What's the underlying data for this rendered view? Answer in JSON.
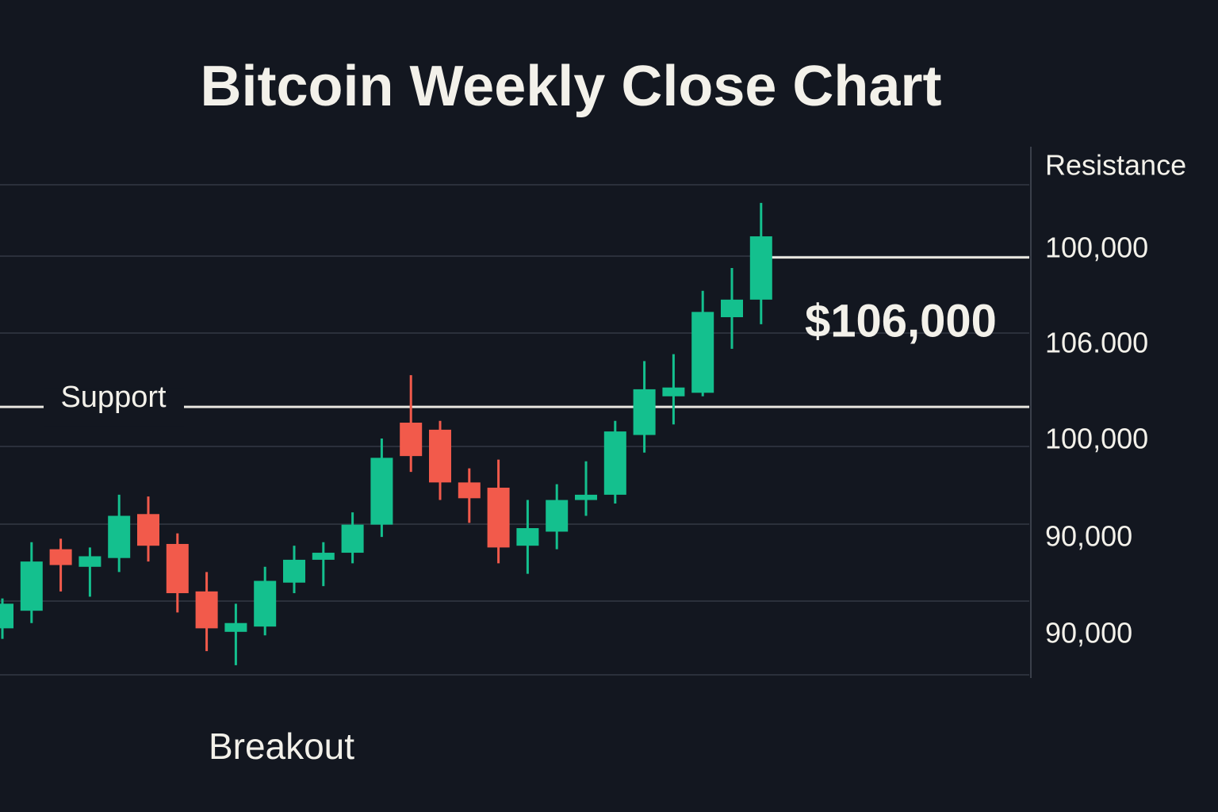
{
  "chart_data": {
    "type": "candlestick",
    "title": "Bitcoin Weekly Close Chart",
    "categories": [
      null,
      null,
      null,
      null,
      null,
      null,
      null,
      null,
      null,
      null,
      null,
      null,
      null,
      null,
      null,
      null,
      null,
      null,
      null,
      null,
      null,
      null,
      null,
      null,
      null,
      null,
      null
    ],
    "open": [
      82600,
      83600,
      87100,
      86100,
      86600,
      89100,
      87400,
      84700,
      82400,
      82700,
      85200,
      86500,
      86900,
      88500,
      94300,
      93900,
      90900,
      90600,
      87300,
      88100,
      89900,
      90200,
      93600,
      95800,
      96000,
      100300,
      101300
    ],
    "high": [
      84300,
      87500,
      87700,
      87200,
      90200,
      90100,
      88000,
      85800,
      84000,
      86100,
      87300,
      87500,
      89200,
      93400,
      97000,
      94400,
      91700,
      92200,
      89900,
      90800,
      92100,
      94400,
      97800,
      98200,
      101800,
      103100,
      106800
    ],
    "low": [
      82000,
      82900,
      84700,
      84400,
      85800,
      86400,
      83500,
      81300,
      80500,
      82200,
      84600,
      85000,
      86300,
      87800,
      91500,
      89900,
      88600,
      86300,
      85700,
      87100,
      89000,
      89700,
      92600,
      94200,
      95800,
      98500,
      99900
    ],
    "close": [
      84000,
      86400,
      86200,
      86700,
      89000,
      87300,
      84600,
      82600,
      82900,
      85300,
      86500,
      86900,
      88500,
      92300,
      92400,
      90900,
      90000,
      87200,
      88300,
      89900,
      90200,
      93800,
      96200,
      96300,
      100600,
      101300,
      104900
    ],
    "up_color": "#14c08e",
    "down_color": "#f25a4b",
    "ylim": [
      80000,
      110000
    ],
    "support": {
      "label": "Support",
      "value": 95200
    },
    "resistance": {
      "label": "Resistance",
      "value": 103700
    },
    "price_annotation": "$106,000",
    "breakout_label": "Breakout",
    "price_labels": [
      "100,000",
      "106.000",
      "100,000",
      "90,000",
      "90,000"
    ]
  }
}
